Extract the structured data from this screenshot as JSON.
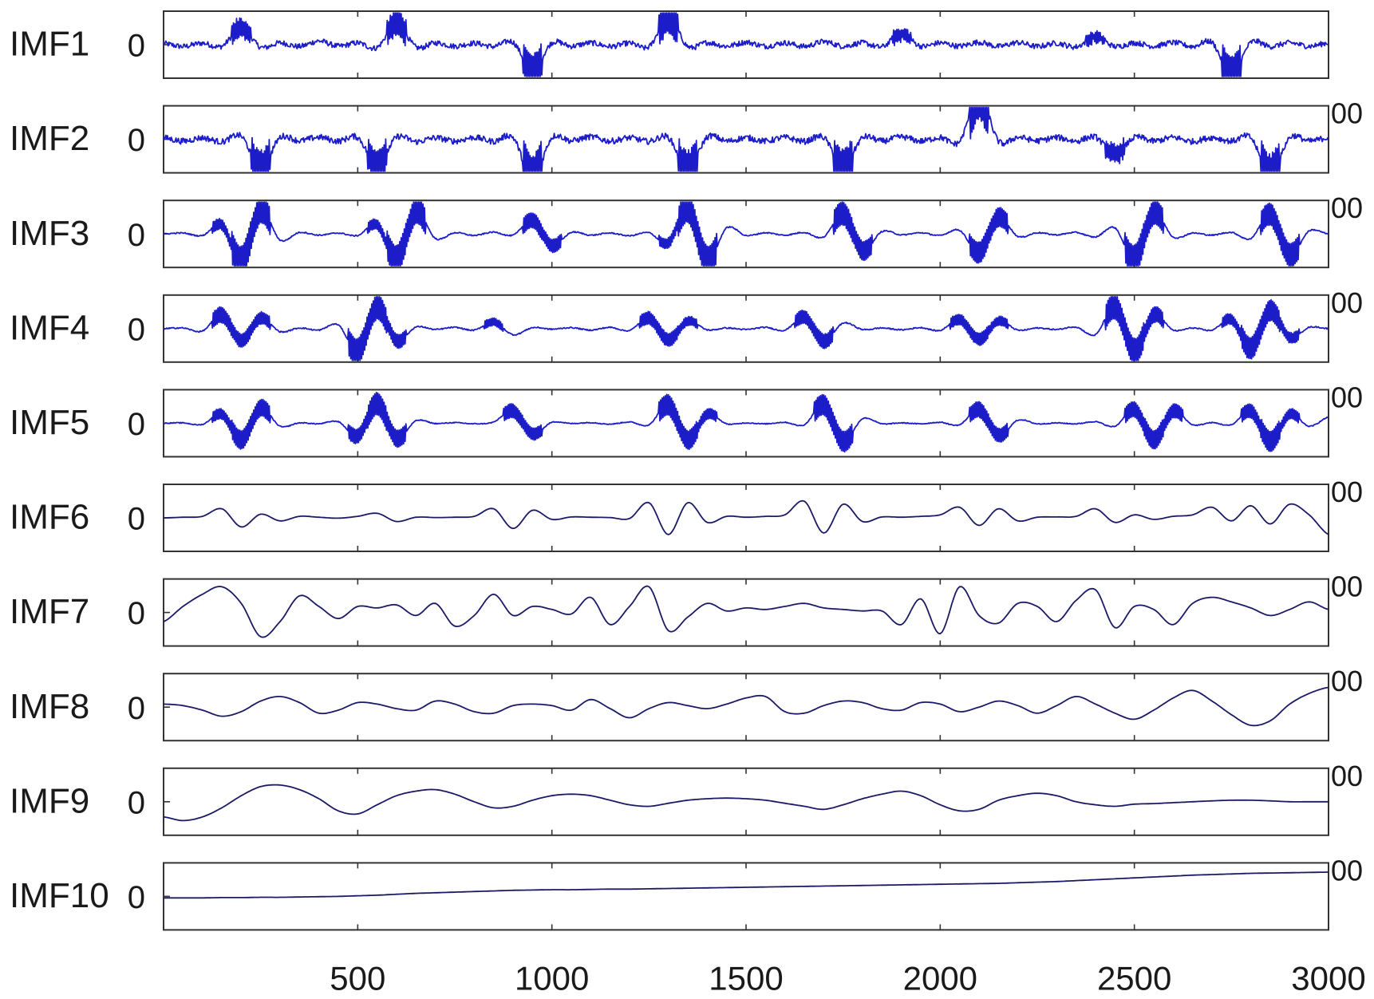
{
  "chart_data": {
    "type": "line",
    "layout": "stacked-subplots",
    "title": "",
    "xlabel": "",
    "ylabel": "",
    "xlim": [
      0,
      3000
    ],
    "x_ticks": [
      500,
      1000,
      1500,
      2000,
      2500,
      3000
    ],
    "x_tick_labels": [
      "500",
      "1000",
      "1500",
      "2000",
      "2500",
      "3000"
    ],
    "y_tick_label": "0",
    "clipped_right_labels": [
      "",
      "00",
      "00",
      "00",
      "00",
      "00",
      "00",
      "00",
      "00",
      "00"
    ],
    "colors": {
      "line_high_freq": "#1c1cc8",
      "line_low_freq": "#1a1a66",
      "frame": "#333333"
    },
    "x_step": 50,
    "panels": [
      {
        "label": "IMF1",
        "style": "high",
        "noise": 0.09,
        "values": [
          0.04,
          -0.06,
          0.05,
          -0.05,
          0.55,
          -0.08,
          0.06,
          -0.06,
          0.12,
          -0.05,
          0.06,
          -0.09,
          0.7,
          -0.08,
          0.06,
          -0.05,
          0.05,
          -0.06,
          0.08,
          -0.85,
          0.06,
          -0.05,
          0.06,
          -0.06,
          0.05,
          -0.07,
          0.9,
          -0.06,
          0.07,
          -0.05,
          0.08,
          -0.05,
          0.06,
          -0.06,
          0.1,
          -0.05,
          0.06,
          -0.07,
          0.35,
          -0.05,
          0.06,
          -0.05,
          0.08,
          -0.06,
          0.07,
          -0.06,
          0.05,
          -0.07,
          0.25,
          -0.06,
          0.06,
          -0.05,
          0.07,
          -0.06,
          0.07,
          -1.0,
          0.07,
          -0.06,
          0.06,
          -0.05,
          0.06
        ]
      },
      {
        "label": "IMF2",
        "style": "high",
        "noise": 0.1,
        "values": [
          0.05,
          -0.06,
          0.05,
          -0.08,
          0.1,
          -0.95,
          0.06,
          -0.05,
          0.07,
          -0.06,
          0.06,
          -0.85,
          0.07,
          -0.08,
          0.05,
          -0.06,
          0.06,
          -0.07,
          0.06,
          -1.3,
          0.06,
          -0.05,
          0.08,
          -0.06,
          0.05,
          -0.07,
          0.06,
          -1.0,
          0.07,
          -0.06,
          0.05,
          -0.06,
          0.06,
          -0.07,
          0.06,
          -0.9,
          0.05,
          -0.06,
          0.08,
          -0.06,
          0.06,
          -0.07,
          1.5,
          -0.06,
          0.07,
          -0.05,
          0.06,
          -0.06,
          0.07,
          -0.5,
          0.06,
          -0.06,
          0.06,
          -0.07,
          0.06,
          -0.06,
          0.05,
          -1.2,
          0.06,
          -0.06,
          0.06
        ]
      },
      {
        "label": "IMF3",
        "style": "high",
        "noise": 0.02,
        "values": [
          0,
          0.03,
          -0.05,
          0.3,
          -0.92,
          0.8,
          -0.2,
          0.05,
          -0.04,
          0.03,
          -0.05,
          0.3,
          -0.85,
          0.75,
          -0.15,
          0.04,
          -0.05,
          0.06,
          -0.04,
          0.45,
          -0.38,
          0.05,
          -0.04,
          0.03,
          -0.06,
          0.04,
          -0.3,
          0.85,
          -0.9,
          0.2,
          -0.05,
          0.04,
          -0.04,
          0.05,
          -0.1,
          0.68,
          -0.55,
          0.08,
          -0.03,
          0.04,
          -0.05,
          0.12,
          -0.62,
          0.55,
          -0.08,
          0.04,
          -0.03,
          0.05,
          -0.1,
          0.2,
          -0.85,
          0.7,
          -0.1,
          0.03,
          -0.04,
          0.05,
          -0.15,
          0.65,
          -0.7,
          0.1,
          0
        ]
      },
      {
        "label": "IMF4",
        "style": "high",
        "noise": 0.02,
        "values": [
          0,
          0.02,
          -0.08,
          0.45,
          -0.4,
          0.35,
          -0.1,
          0.02,
          -0.05,
          0.12,
          -0.75,
          0.7,
          -0.4,
          0.05,
          -0.03,
          0.04,
          -0.05,
          0.22,
          -0.2,
          0.03,
          -0.02,
          0.03,
          -0.05,
          0.04,
          -0.06,
          0.35,
          -0.38,
          0.25,
          -0.04,
          0.02,
          -0.03,
          0.04,
          -0.05,
          0.38,
          -0.42,
          0.18,
          -0.03,
          0.02,
          -0.04,
          0.03,
          -0.06,
          0.3,
          -0.35,
          0.25,
          -0.05,
          0.02,
          -0.03,
          0.05,
          -0.2,
          0.72,
          -0.75,
          0.45,
          -0.05,
          0.02,
          -0.05,
          0.3,
          -0.65,
          0.6,
          -0.3,
          0.04,
          0
        ]
      },
      {
        "label": "IMF5",
        "style": "high",
        "noise": 0.015,
        "values": [
          0,
          0.01,
          -0.04,
          0.3,
          -0.55,
          0.5,
          -0.1,
          0.01,
          -0.02,
          0.05,
          -0.42,
          0.65,
          -0.5,
          0.08,
          -0.01,
          0.02,
          -0.02,
          0.04,
          0.4,
          -0.35,
          0.03,
          -0.01,
          0.02,
          -0.03,
          0.04,
          -0.05,
          0.6,
          -0.55,
          0.3,
          -0.02,
          0.01,
          -0.02,
          0.03,
          -0.05,
          0.6,
          -0.6,
          0.15,
          -0.02,
          0.01,
          -0.02,
          0.03,
          -0.05,
          0.45,
          -0.4,
          0.1,
          -0.02,
          0.01,
          -0.02,
          0.05,
          -0.1,
          0.45,
          -0.55,
          0.4,
          -0.05,
          0.02,
          -0.05,
          0.4,
          -0.6,
          0.3,
          -0.1,
          0.2
        ]
      },
      {
        "label": "IMF6",
        "style": "low",
        "noise": 0.0,
        "values": [
          0,
          0.02,
          0.05,
          0.3,
          -0.3,
          0.12,
          -0.1,
          0.05,
          0.02,
          -0.01,
          0.05,
          0.15,
          -0.12,
          0.02,
          0.01,
          0.02,
          0.05,
          0.3,
          -0.35,
          0.25,
          -0.05,
          0.03,
          0.02,
          0.01,
          -0.02,
          0.5,
          -0.55,
          0.5,
          -0.15,
          0.05,
          0.02,
          0.05,
          0.1,
          0.55,
          -0.5,
          0.45,
          -0.12,
          0.03,
          0.02,
          0.05,
          0.1,
          0.35,
          -0.25,
          0.3,
          -0.1,
          0.02,
          0.03,
          0.05,
          0.3,
          -0.15,
          0.1,
          -0.05,
          0.05,
          0.1,
          0.35,
          -0.1,
          0.4,
          -0.2,
          0.45,
          0.1,
          -0.55
        ]
      },
      {
        "label": "IMF7",
        "style": "low",
        "noise": 0.0,
        "values": [
          -0.3,
          0.2,
          0.6,
          0.85,
          0.3,
          -0.8,
          -0.3,
          0.55,
          0.2,
          -0.2,
          0.2,
          0.15,
          0.25,
          -0.1,
          0.3,
          -0.45,
          -0.1,
          0.6,
          -0.1,
          0.2,
          0.1,
          -0.05,
          0.5,
          -0.4,
          0.2,
          0.85,
          -0.6,
          -0.15,
          0.3,
          0.05,
          0.15,
          0.1,
          0.2,
          0.3,
          0.15,
          0.1,
          0.05,
          0.05,
          -0.4,
          0.45,
          -0.7,
          0.85,
          -0.1,
          -0.35,
          0.3,
          0.2,
          -0.3,
          0.4,
          0.75,
          -0.5,
          0.2,
          0.1,
          -0.4,
          0.3,
          0.5,
          0.35,
          0.15,
          -0.1,
          0.1,
          0.35,
          0.1
        ]
      },
      {
        "label": "IMF8",
        "style": "low",
        "noise": 0.0,
        "values": [
          0.1,
          0.05,
          -0.1,
          -0.3,
          -0.15,
          0.2,
          0.35,
          0.15,
          -0.2,
          -0.1,
          0.15,
          0.1,
          -0.05,
          -0.1,
          0.2,
          0.1,
          -0.15,
          -0.2,
          0.05,
          0.1,
          0.05,
          -0.1,
          0.25,
          -0.05,
          -0.35,
          -0.05,
          0.15,
          0.05,
          -0.05,
          0.1,
          0.3,
          0.35,
          -0.15,
          -0.2,
          0.05,
          0.2,
          0.15,
          -0.05,
          -0.1,
          0.15,
          0.1,
          -0.15,
          0.0,
          0.2,
          0.05,
          -0.2,
          0.05,
          0.35,
          0.1,
          -0.2,
          -0.4,
          -0.1,
          0.3,
          0.55,
          0.2,
          -0.25,
          -0.6,
          -0.45,
          0.1,
          0.45,
          0.65
        ]
      },
      {
        "label": "IMF9",
        "style": "low",
        "noise": 0.0,
        "values": [
          -0.5,
          -0.62,
          -0.5,
          -0.2,
          0.2,
          0.5,
          0.55,
          0.4,
          0.1,
          -0.3,
          -0.4,
          -0.1,
          0.2,
          0.35,
          0.4,
          0.25,
          0.0,
          -0.2,
          -0.15,
          0.05,
          0.2,
          0.25,
          0.2,
          0.05,
          -0.1,
          -0.15,
          -0.05,
          0.05,
          0.1,
          0.12,
          0.1,
          0.05,
          -0.05,
          -0.15,
          -0.25,
          -0.1,
          0.1,
          0.25,
          0.35,
          0.2,
          -0.1,
          -0.3,
          -0.25,
          0.05,
          0.2,
          0.28,
          0.2,
          0.0,
          -0.1,
          -0.15,
          -0.08,
          -0.06,
          -0.03,
          0.0,
          0.03,
          0.05,
          0.05,
          0.03,
          0.0,
          0.0,
          0.0
        ]
      },
      {
        "label": "IMF10",
        "style": "low",
        "noise": 0.0,
        "values": [
          -0.05,
          -0.05,
          -0.05,
          -0.04,
          -0.04,
          -0.03,
          -0.03,
          -0.02,
          -0.01,
          0.0,
          0.02,
          0.04,
          0.07,
          0.1,
          0.12,
          0.14,
          0.16,
          0.18,
          0.2,
          0.21,
          0.22,
          0.22,
          0.23,
          0.24,
          0.24,
          0.25,
          0.26,
          0.27,
          0.28,
          0.29,
          0.3,
          0.31,
          0.32,
          0.33,
          0.34,
          0.35,
          0.36,
          0.37,
          0.38,
          0.39,
          0.4,
          0.41,
          0.42,
          0.43,
          0.45,
          0.47,
          0.49,
          0.52,
          0.55,
          0.58,
          0.61,
          0.64,
          0.67,
          0.7,
          0.72,
          0.74,
          0.76,
          0.77,
          0.78,
          0.79,
          0.8
        ]
      }
    ]
  }
}
